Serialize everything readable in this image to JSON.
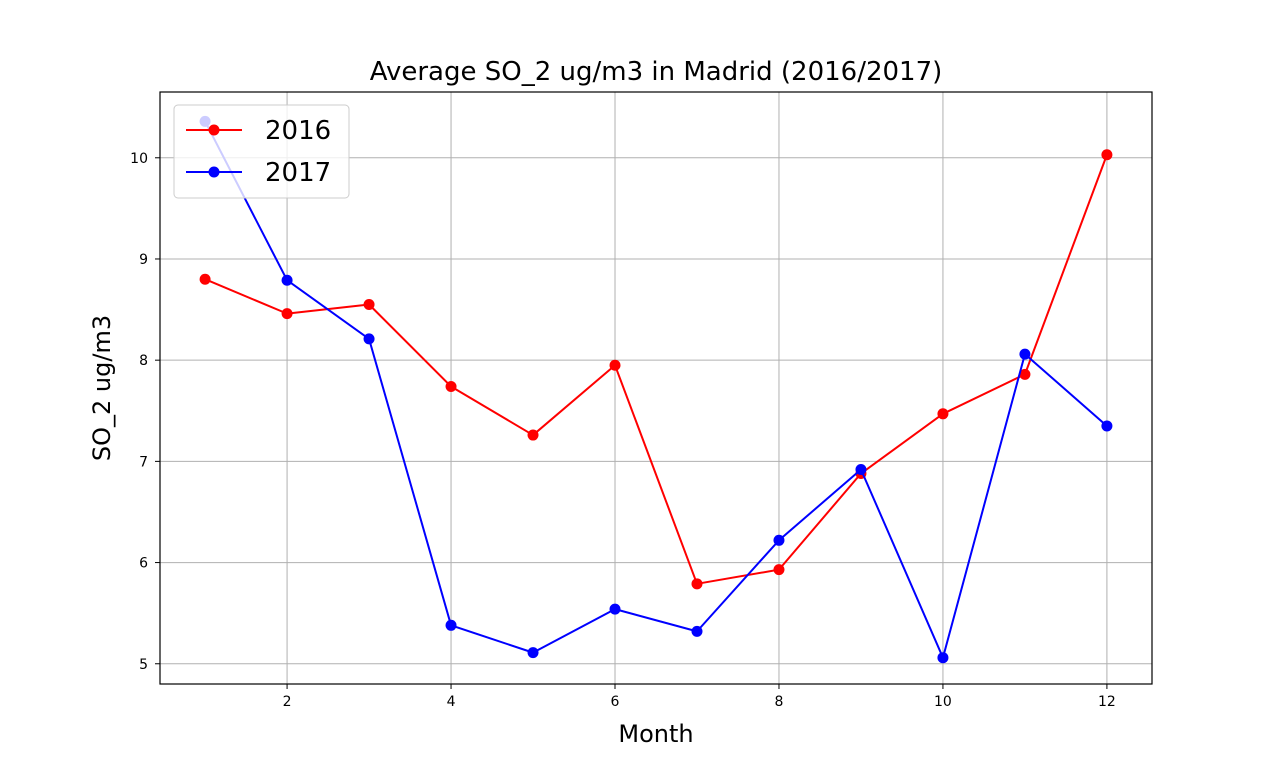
{
  "chart_data": {
    "type": "line",
    "title": "Average SO_2 ug/m3 in Madrid (2016/2017)",
    "xlabel": "Month",
    "ylabel": "SO_2 ug/m3",
    "xlim": [
      0.45,
      12.55
    ],
    "ylim": [
      4.8,
      10.65
    ],
    "xticks": [
      2,
      4,
      6,
      8,
      10,
      12
    ],
    "yticks": [
      5,
      6,
      7,
      8,
      9,
      10
    ],
    "grid": true,
    "legend_position": "top-left",
    "x": [
      1,
      2,
      3,
      4,
      5,
      6,
      7,
      8,
      9,
      10,
      11,
      12
    ],
    "series": [
      {
        "name": "2016",
        "color": "#ff0000",
        "values": [
          8.8,
          8.46,
          8.55,
          7.74,
          7.26,
          7.95,
          5.79,
          5.93,
          6.88,
          7.47,
          7.86,
          10.03
        ]
      },
      {
        "name": "2017",
        "color": "#0000ff",
        "values": [
          10.36,
          8.79,
          8.21,
          5.38,
          5.11,
          5.54,
          5.32,
          6.22,
          6.92,
          5.06,
          8.06,
          7.35
        ]
      }
    ]
  }
}
